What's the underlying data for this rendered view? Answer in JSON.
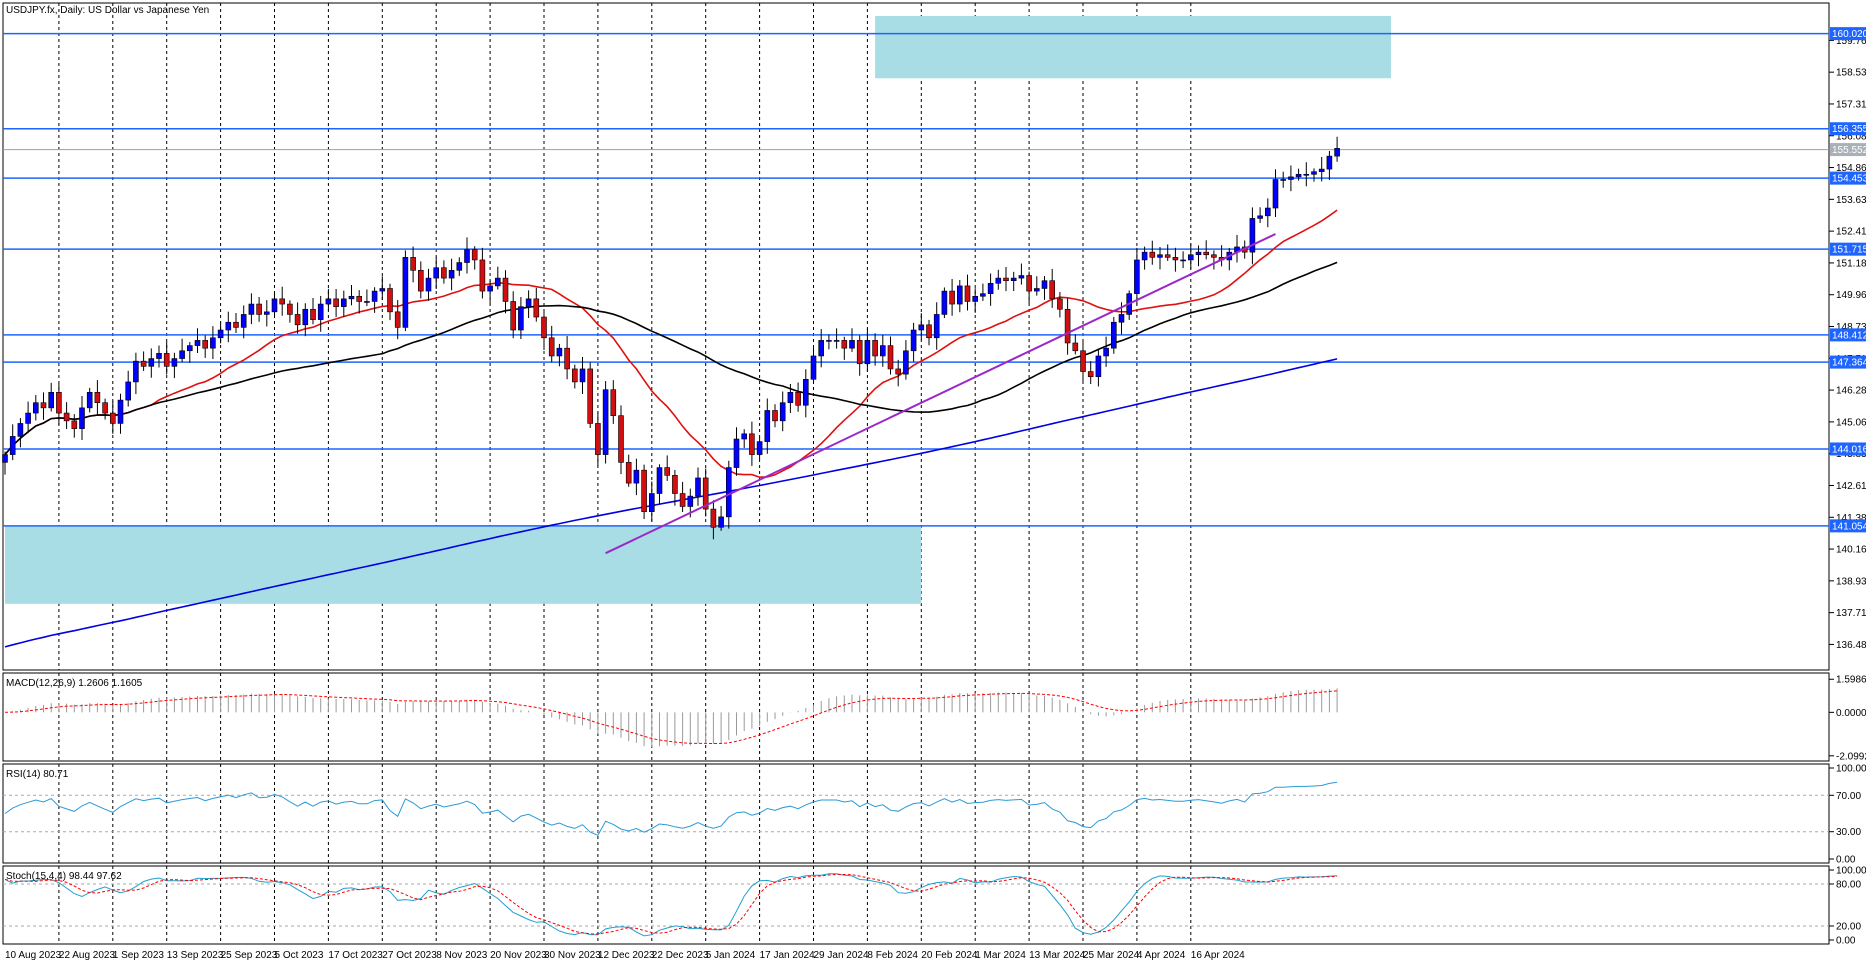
{
  "chart_data": [
    {
      "panel": "price",
      "type": "candlestick",
      "title": "USDJPY.fx, Daily:  US Dollar vs Japanese Yen",
      "ylim": [
        135.5,
        161.2
      ],
      "y_ticks": [
        "159.760",
        "158.535",
        "157.310",
        "156.085",
        "154.860",
        "153.635",
        "152.410",
        "151.185",
        "149.960",
        "148.735",
        "147.510",
        "146.285",
        "145.060",
        "143.835",
        "142.610",
        "141.385",
        "140.160",
        "138.935",
        "137.710",
        "136.485"
      ],
      "x_labels": [
        "10 Aug 2023",
        "22 Aug 2023",
        "1 Sep 2023",
        "13 Sep 2023",
        "25 Sep 2023",
        "5 Oct 2023",
        "17 Oct 2023",
        "27 Oct 2023",
        "8 Nov 2023",
        "20 Nov 2023",
        "30 Nov 2023",
        "12 Dec 2023",
        "22 Dec 2023",
        "5 Jan 2024",
        "17 Jan 2024",
        "29 Jan 2024",
        "8 Feb 2024",
        "20 Feb 2024",
        "1 Mar 2024",
        "13 Mar 2024",
        "25 Mar 2024",
        "4 Apr 2024",
        "16 Apr 2024"
      ],
      "levels": [
        {
          "value": 160.02,
          "label": "160.020"
        },
        {
          "value": 156.355,
          "label": "156.355"
        },
        {
          "value": 154.453,
          "label": "154.453"
        },
        {
          "value": 151.715,
          "label": "151.715"
        },
        {
          "value": 148.412,
          "label": "148.412"
        },
        {
          "value": 147.364,
          "label": "147.364"
        },
        {
          "value": 144.016,
          "label": "144.016"
        },
        {
          "value": 141.054,
          "label": "141.054"
        }
      ],
      "current_price": {
        "value": 155.552,
        "label": "155.552"
      },
      "zones": [
        {
          "from_bar": 113,
          "to_bar": 180,
          "low": 158.3,
          "high": 160.7
        },
        {
          "from_bar": 0,
          "to_bar": 119,
          "low": 138.05,
          "high": 141.054
        }
      ],
      "trendline": {
        "from": {
          "bar": 78,
          "value": 140.0
        },
        "to": {
          "bar": 165,
          "value": 152.3
        }
      },
      "closes": [
        143.8,
        144.5,
        145.0,
        145.4,
        145.8,
        145.6,
        146.2,
        145.4,
        145.1,
        144.8,
        145.6,
        146.2,
        145.8,
        145.4,
        145.0,
        145.9,
        146.6,
        147.4,
        147.2,
        147.5,
        147.7,
        147.2,
        147.5,
        147.8,
        148.0,
        148.2,
        147.9,
        148.3,
        148.6,
        148.9,
        148.7,
        149.2,
        149.6,
        149.2,
        149.3,
        149.8,
        149.6,
        149.2,
        148.8,
        149.4,
        149.0,
        149.6,
        149.8,
        149.5,
        149.8,
        149.9,
        149.7,
        149.7,
        150.1,
        150.2,
        149.3,
        148.7,
        151.4,
        150.9,
        150.1,
        150.6,
        151.0,
        150.6,
        150.9,
        151.2,
        151.7,
        151.3,
        150.1,
        150.3,
        150.6,
        149.7,
        148.6,
        149.5,
        149.8,
        149.1,
        148.3,
        147.6,
        147.9,
        147.1,
        146.6,
        147.1,
        145.0,
        143.8,
        146.3,
        145.3,
        143.5,
        142.7,
        143.2,
        141.6,
        142.3,
        143.3,
        143.0,
        142.3,
        141.8,
        142.2,
        142.9,
        141.7,
        141.0,
        141.4,
        143.3,
        144.4,
        144.6,
        143.8,
        144.3,
        145.5,
        145.1,
        145.8,
        146.2,
        145.7,
        146.7,
        147.6,
        148.2,
        148.2,
        148.2,
        147.9,
        148.2,
        147.3,
        148.2,
        147.6,
        148.0,
        147.1,
        146.9,
        147.8,
        148.6,
        148.8,
        148.3,
        149.2,
        150.1,
        149.6,
        150.3,
        149.7,
        149.9,
        150.0,
        150.4,
        150.6,
        150.5,
        150.6,
        150.7,
        150.1,
        150.2,
        150.5,
        149.8,
        149.4,
        148.1,
        147.8,
        147.0,
        146.8,
        147.6,
        147.9,
        148.9,
        149.2,
        150.0,
        151.3,
        151.6,
        151.4,
        151.5,
        151.4,
        151.3,
        151.3,
        151.5,
        151.6,
        151.5,
        151.4,
        151.3,
        151.6,
        151.8,
        151.6,
        152.9,
        153.0,
        153.3,
        154.4,
        154.4,
        154.5,
        154.6,
        154.6,
        154.7,
        154.8,
        155.3,
        155.6
      ],
      "moving_averages": [
        {
          "color": "#e01010",
          "period": 20
        },
        {
          "color": "#000000",
          "period": 50
        },
        {
          "color": "#0000e0",
          "period": 200
        }
      ]
    },
    {
      "panel": "macd",
      "type": "histogram",
      "label": "MACD(12,26,9) 1.2606 1.1605",
      "ylim": [
        -2.35,
        1.9
      ],
      "y_ticks": [
        "1.5986",
        "0.0000",
        "-2.0992"
      ]
    },
    {
      "panel": "rsi",
      "type": "line",
      "label": "RSI(14) 80.71",
      "ylim": [
        0,
        100
      ],
      "y_ticks": [
        "100.00",
        "70.00",
        "30.00",
        "0.00"
      ]
    },
    {
      "panel": "stoch",
      "type": "line",
      "label": "Stoch(15,4,4) 98.44 97.62",
      "ylim": [
        0,
        100
      ],
      "y_ticks": [
        "100.00",
        "80.00",
        "20.00",
        "0.00"
      ]
    }
  ],
  "colors": {
    "up": "#0000ff",
    "down": "#d01010",
    "level_line": "#1e64ff",
    "level_label_bg": "#1e64ff",
    "zone": "#a8dde6",
    "trendline": "#9b28c8",
    "macd_hist": "#9a9a9a",
    "macd_signal": "#ff0000",
    "rsi_line": "#2a9ad8",
    "stoch_main": "#20a0d0",
    "stoch_signal": "#ff0000"
  }
}
